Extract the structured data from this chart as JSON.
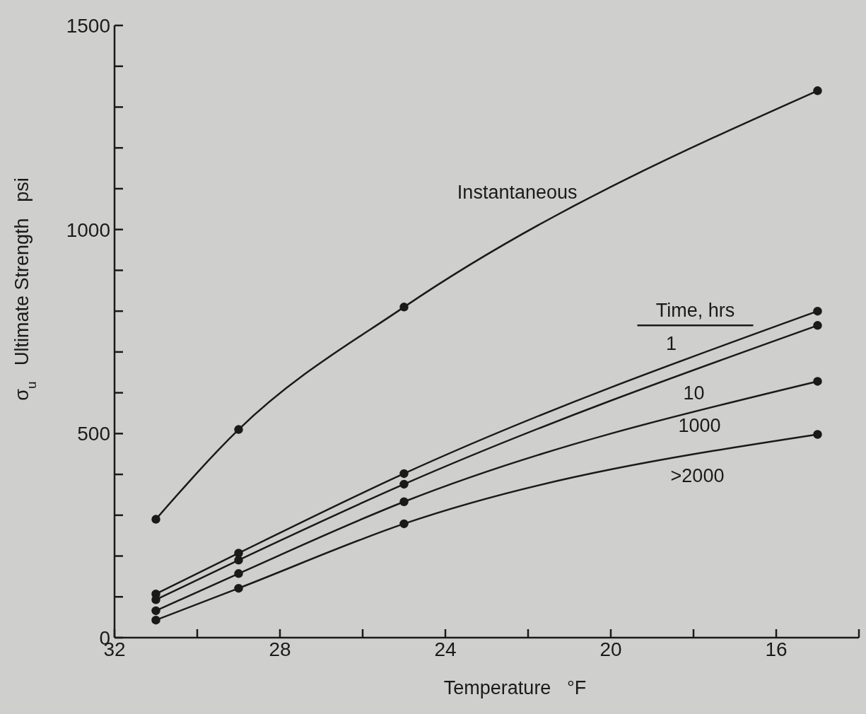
{
  "chart_data": {
    "type": "line",
    "xlabel": "Temperature   °F",
    "ylabel": "σ$_{u}$   Ultimate Strength   psi",
    "legend_title": "Time, hrs",
    "x": [
      31,
      29,
      25,
      15
    ],
    "series": [
      {
        "name": "Instantaneous",
        "color": "#1a1a1a",
        "values": [
          290,
          510,
          810,
          1340
        ]
      },
      {
        "name": "1",
        "color": "#1a1a1a",
        "values": [
          107,
          207,
          402,
          800
        ]
      },
      {
        "name": "10",
        "color": "#1a1a1a",
        "values": [
          93,
          190,
          376,
          765
        ]
      },
      {
        "name": "1000",
        "color": "#1a1a1a",
        "values": [
          66,
          157,
          333,
          628
        ]
      },
      {
        "name": ">2000",
        "color": "#1a1a1a",
        "values": [
          43,
          121,
          279,
          498
        ]
      }
    ],
    "xlim": [
      32,
      14
    ],
    "xticks": [
      32,
      {
        "value": 30,
        "label": null
      },
      28,
      {
        "value": 26,
        "label": null
      },
      24,
      {
        "value": 22,
        "label": null
      },
      20,
      {
        "value": 18,
        "label": null
      },
      16,
      {
        "value": 14,
        "label": null
      }
    ],
    "ylim": [
      0,
      1500
    ],
    "yticks": [
      0,
      {
        "value": 100,
        "label": null
      },
      {
        "value": 200,
        "label": null
      },
      {
        "value": 300,
        "label": null
      },
      {
        "value": 400,
        "label": null
      },
      500,
      {
        "value": 600,
        "label": null
      },
      {
        "value": 700,
        "label": null
      },
      {
        "value": 800,
        "label": null
      },
      {
        "value": 900,
        "label": null
      },
      1000,
      {
        "value": 1100,
        "label": null
      },
      {
        "value": 1200,
        "label": null
      },
      {
        "value": 1300,
        "label": null
      },
      {
        "value": 1400,
        "label": null
      },
      1500
    ],
    "marker": "circle",
    "line_style": "solid"
  }
}
